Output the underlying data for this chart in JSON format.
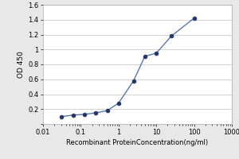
{
  "x": [
    0.031,
    0.063,
    0.125,
    0.25,
    0.5,
    1.0,
    2.5,
    5.0,
    10.0,
    25.0,
    100.0
  ],
  "y": [
    0.1,
    0.12,
    0.13,
    0.15,
    0.18,
    0.28,
    0.58,
    0.91,
    0.95,
    1.18,
    1.42
  ],
  "line_color": "#5577aa",
  "marker_color": "#223366",
  "marker_style": "o",
  "marker_size": 3.5,
  "linewidth": 1.0,
  "xlabel": "Recombinant ProteinConcentration(ng/ml)",
  "ylabel": "OD 450",
  "xlim": [
    0.01,
    1000
  ],
  "ylim": [
    0,
    1.6
  ],
  "yticks": [
    0,
    0.2,
    0.4,
    0.6,
    0.8,
    1.0,
    1.2,
    1.4,
    1.6
  ],
  "xtick_labels": [
    "0.01",
    "0.1",
    "1",
    "10",
    "100",
    "1000"
  ],
  "xtick_vals": [
    0.01,
    0.1,
    1,
    10,
    100,
    1000
  ],
  "figure_bg": "#e8e8e8",
  "plot_bg": "#ffffff",
  "grid_color": "#cccccc",
  "xlabel_fontsize": 6.0,
  "ylabel_fontsize": 6.5,
  "tick_fontsize": 6.0
}
